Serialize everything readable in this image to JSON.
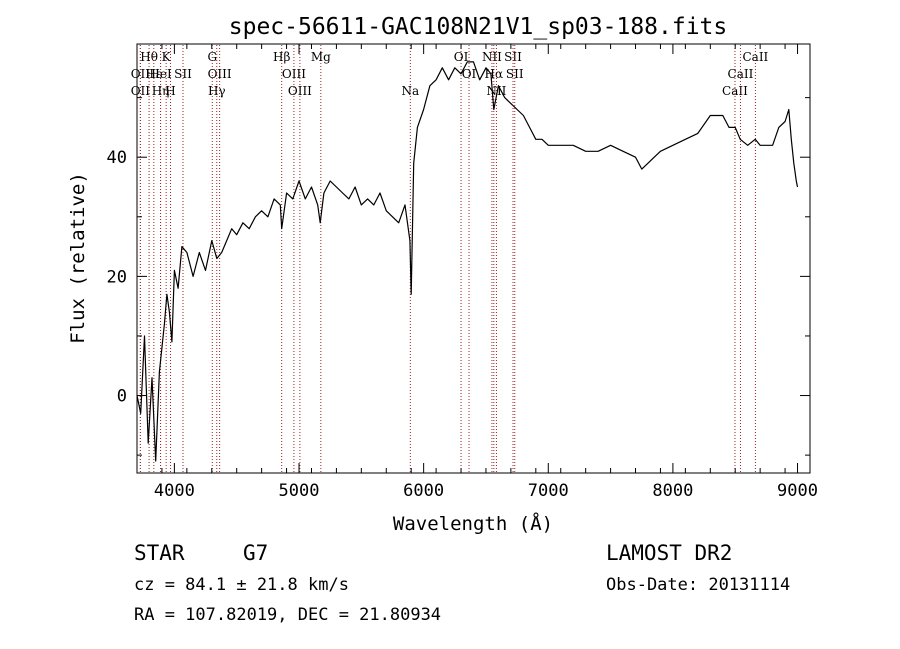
{
  "chart_data": {
    "type": "line",
    "title": "spec-56611-GAC108N21V1_sp03-188.fits",
    "xlabel": "Wavelength (Å)",
    "ylabel": "Flux (relative)",
    "xlim": [
      3700,
      9100
    ],
    "ylim": [
      -13,
      59
    ],
    "x_ticks": [
      4000,
      5000,
      6000,
      7000,
      8000,
      9000
    ],
    "y_ticks": [
      0,
      20,
      40
    ],
    "grid": false,
    "series": [
      {
        "color": "#000000",
        "x": [
          3700,
          3730,
          3760,
          3790,
          3820,
          3850,
          3880,
          3900,
          3920,
          3940,
          3960,
          3980,
          4000,
          4030,
          4060,
          4100,
          4150,
          4200,
          4250,
          4300,
          4340,
          4380,
          4420,
          4460,
          4500,
          4550,
          4600,
          4650,
          4700,
          4750,
          4800,
          4850,
          4861,
          4900,
          4950,
          5000,
          5050,
          5100,
          5150,
          5170,
          5200,
          5250,
          5300,
          5350,
          5400,
          5450,
          5500,
          5550,
          5600,
          5650,
          5700,
          5750,
          5800,
          5850,
          5890,
          5900,
          5920,
          5950,
          6000,
          6050,
          6100,
          6150,
          6200,
          6250,
          6300,
          6350,
          6400,
          6450,
          6500,
          6540,
          6563,
          6600,
          6650,
          6700,
          6750,
          6800,
          6850,
          6900,
          6950,
          7000,
          7100,
          7200,
          7300,
          7400,
          7500,
          7600,
          7700,
          7750,
          7800,
          7850,
          7900,
          8000,
          8100,
          8200,
          8300,
          8400,
          8450,
          8500,
          8540,
          8600,
          8660,
          8700,
          8750,
          8800,
          8850,
          8900,
          8930,
          8950,
          8970,
          8990,
          9000
        ],
        "y": [
          0,
          -3,
          10,
          -8,
          3,
          -11,
          4,
          8,
          12,
          17,
          14,
          9,
          21,
          18,
          25,
          24,
          20,
          24,
          21,
          26,
          23,
          24,
          26,
          28,
          27,
          29,
          28,
          30,
          31,
          30,
          33,
          32,
          28,
          34,
          33,
          36,
          33,
          35,
          32,
          29,
          34,
          36,
          35,
          34,
          33,
          35,
          32,
          33,
          32,
          34,
          31,
          30,
          29,
          32,
          26,
          17,
          39,
          45,
          48,
          52,
          53,
          55,
          53,
          55,
          54,
          56,
          56,
          53,
          55,
          54,
          48,
          52,
          50,
          49,
          48,
          47,
          45,
          43,
          43,
          42,
          42,
          42,
          41,
          41,
          42,
          41,
          40,
          38,
          39,
          40,
          41,
          42,
          43,
          44,
          47,
          47,
          45,
          45,
          43,
          42,
          43,
          42,
          42,
          42,
          45,
          46,
          48,
          43,
          39,
          36,
          35
        ]
      }
    ],
    "spectral_lines": [
      {
        "label": "Hθ",
        "x": 3797,
        "row": 0
      },
      {
        "label": "Hε",
        "x": 3835,
        "row": 1
      },
      {
        "label": "K",
        "x": 3934,
        "row": 0
      },
      {
        "label": "H",
        "x": 3969,
        "row": 2
      },
      {
        "label": "OII",
        "x": 3727,
        "row": 1
      },
      {
        "label": "OII",
        "x": 3727,
        "row": 2
      },
      {
        "label": "HeI",
        "x": 3889,
        "row": 1
      },
      {
        "label": "Hη",
        "x": 3889,
        "row": 2
      },
      {
        "label": "SII",
        "x": 4069,
        "row": 1
      },
      {
        "label": "G",
        "x": 4304,
        "row": 0
      },
      {
        "label": "OIII",
        "x": 4363,
        "row": 1
      },
      {
        "label": "Hγ",
        "x": 4340,
        "row": 2
      },
      {
        "label": "Hβ",
        "x": 4861,
        "row": 0
      },
      {
        "label": "OIII",
        "x": 4959,
        "row": 1
      },
      {
        "label": "OIII",
        "x": 5007,
        "row": 2
      },
      {
        "label": "Mg",
        "x": 5175,
        "row": 0
      },
      {
        "label": "Na",
        "x": 5893,
        "row": 2
      },
      {
        "label": "OI",
        "x": 6300,
        "row": 0
      },
      {
        "label": "OI",
        "x": 6364,
        "row": 1
      },
      {
        "label": "NII",
        "x": 6548,
        "row": 0
      },
      {
        "label": "Hα",
        "x": 6563,
        "row": 1
      },
      {
        "label": "NII",
        "x": 6584,
        "row": 2
      },
      {
        "label": "SII",
        "x": 6717,
        "row": 0
      },
      {
        "label": "SII",
        "x": 6731,
        "row": 1
      },
      {
        "label": "CaII",
        "x": 8498,
        "row": 2
      },
      {
        "label": "CaII",
        "x": 8542,
        "row": 1
      },
      {
        "label": "CaII",
        "x": 8662,
        "row": 0
      }
    ]
  },
  "info": {
    "object_class": "STAR",
    "subclass": "G7",
    "redshift_line": "cz = 84.1 ± 21.8 km/s",
    "coords_line": "RA = 107.82019, DEC =  21.80934",
    "survey": "LAMOST DR2",
    "obs_date": "Obs-Date: 20131114"
  }
}
